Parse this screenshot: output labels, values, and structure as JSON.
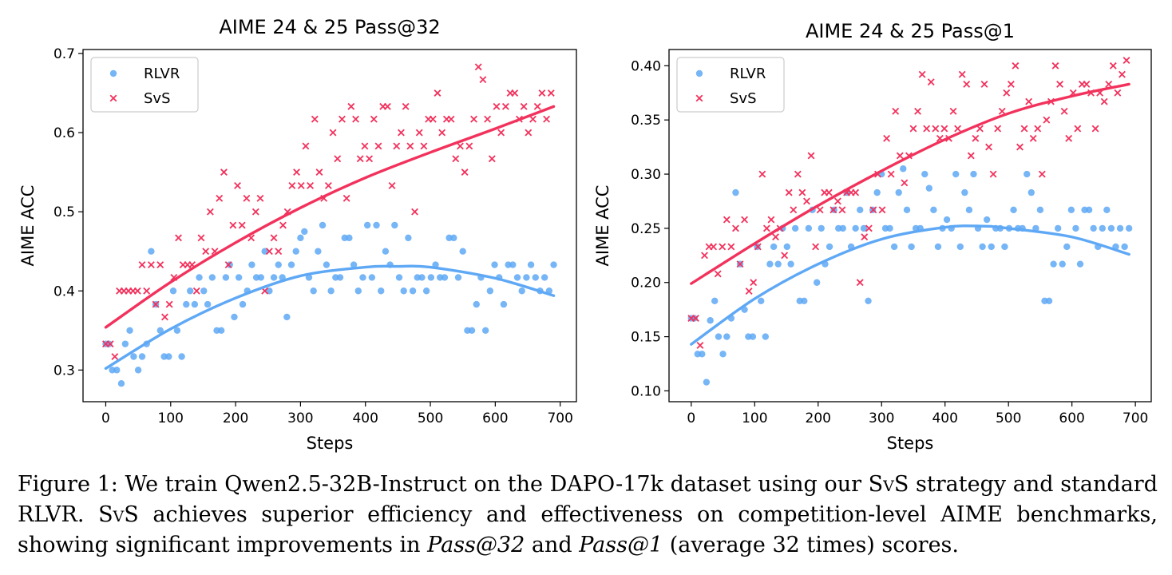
{
  "colors": {
    "rlvr": "#5ea8f5",
    "svs": "#f2325c"
  },
  "chart_data": [
    {
      "type": "scatter",
      "title": "AIME 24 & 25 Pass@32",
      "xlabel": "Steps",
      "ylabel": "AIME ACC",
      "xlim": [
        -35,
        725
      ],
      "ylim": [
        0.26,
        0.705
      ],
      "xticks": [
        0,
        100,
        200,
        300,
        400,
        500,
        600,
        700
      ],
      "yticks": [
        0.3,
        0.4,
        0.5,
        0.6,
        0.7
      ],
      "tick_labels_x": [
        "0",
        "100",
        "200",
        "300",
        "400",
        "500",
        "600",
        "700"
      ],
      "tick_labels_y": [
        "0.3",
        "0.4",
        "0.5",
        "0.6",
        "0.7"
      ],
      "legend": "top-left",
      "series": [
        {
          "name": "RLVR",
          "marker": "o",
          "x": [
            0,
            5,
            10,
            17,
            24,
            30,
            37,
            43,
            50,
            56,
            63,
            70,
            77,
            84,
            90,
            97,
            104,
            110,
            117,
            124,
            130,
            137,
            144,
            151,
            157,
            164,
            171,
            178,
            185,
            191,
            198,
            205,
            211,
            218,
            225,
            232,
            239,
            245,
            252,
            259,
            266,
            272,
            279,
            286,
            293,
            300,
            306,
            313,
            320,
            327,
            334,
            340,
            347,
            354,
            361,
            368,
            375,
            382,
            389,
            396,
            403,
            410,
            417,
            424,
            431,
            438,
            445,
            452,
            459,
            466,
            473,
            480,
            487,
            494,
            501,
            508,
            515,
            522,
            529,
            536,
            543,
            550,
            557,
            564,
            571,
            578,
            585,
            592,
            599,
            606,
            613,
            620,
            627,
            634,
            641,
            648,
            655,
            662,
            669,
            676,
            683,
            690
          ],
          "y": [
            0.333,
            0.333,
            0.3,
            0.3,
            0.283,
            0.333,
            0.35,
            0.317,
            0.3,
            0.317,
            0.333,
            0.45,
            0.383,
            0.35,
            0.317,
            0.317,
            0.4,
            0.35,
            0.317,
            0.383,
            0.4,
            0.383,
            0.417,
            0.4,
            0.383,
            0.417,
            0.35,
            0.35,
            0.417,
            0.433,
            0.367,
            0.417,
            0.383,
            0.4,
            0.433,
            0.417,
            0.417,
            0.45,
            0.4,
            0.417,
            0.433,
            0.417,
            0.367,
            0.433,
            0.45,
            0.467,
            0.475,
            0.417,
            0.4,
            0.45,
            0.483,
            0.433,
            0.4,
            0.417,
            0.417,
            0.467,
            0.467,
            0.433,
            0.4,
            0.417,
            0.483,
            0.417,
            0.483,
            0.4,
            0.45,
            0.433,
            0.483,
            0.417,
            0.4,
            0.467,
            0.4,
            0.417,
            0.417,
            0.4,
            0.417,
            0.433,
            0.417,
            0.417,
            0.467,
            0.467,
            0.417,
            0.45,
            0.35,
            0.35,
            0.383,
            0.417,
            0.35,
            0.4,
            0.433,
            0.417,
            0.383,
            0.433,
            0.433,
            0.417,
            0.4,
            0.417,
            0.433,
            0.417,
            0.4,
            0.417,
            0.4,
            0.433
          ]
        },
        {
          "name": "SvS",
          "marker": "x",
          "x": [
            0,
            7,
            14,
            21,
            28,
            35,
            42,
            49,
            56,
            63,
            70,
            77,
            84,
            91,
            98,
            105,
            112,
            119,
            126,
            133,
            140,
            147,
            154,
            161,
            168,
            175,
            182,
            189,
            196,
            203,
            210,
            217,
            224,
            231,
            238,
            245,
            252,
            259,
            266,
            273,
            280,
            287,
            294,
            301,
            308,
            315,
            322,
            329,
            336,
            343,
            350,
            357,
            364,
            371,
            378,
            385,
            392,
            399,
            406,
            413,
            420,
            427,
            434,
            441,
            448,
            455,
            462,
            469,
            476,
            483,
            490,
            497,
            504,
            511,
            518,
            525,
            532,
            539,
            546,
            553,
            560,
            567,
            574,
            581,
            588,
            595,
            602,
            609,
            616,
            623,
            630,
            637,
            644,
            651,
            658,
            665,
            672,
            679,
            686
          ],
          "y": [
            0.333,
            0.333,
            0.317,
            0.4,
            0.4,
            0.4,
            0.4,
            0.4,
            0.433,
            0.4,
            0.433,
            0.383,
            0.433,
            0.367,
            0.383,
            0.417,
            0.467,
            0.433,
            0.433,
            0.433,
            0.4,
            0.467,
            0.45,
            0.5,
            0.45,
            0.517,
            0.55,
            0.433,
            0.483,
            0.533,
            0.483,
            0.517,
            0.467,
            0.5,
            0.517,
            0.4,
            0.45,
            0.467,
            0.45,
            0.483,
            0.5,
            0.533,
            0.55,
            0.533,
            0.583,
            0.533,
            0.617,
            0.55,
            0.517,
            0.533,
            0.6,
            0.567,
            0.617,
            0.517,
            0.633,
            0.617,
            0.567,
            0.583,
            0.567,
            0.617,
            0.583,
            0.633,
            0.633,
            0.533,
            0.583,
            0.6,
            0.633,
            0.583,
            0.5,
            0.6,
            0.583,
            0.617,
            0.617,
            0.65,
            0.6,
            0.617,
            0.617,
            0.567,
            0.583,
            0.55,
            0.583,
            0.617,
            0.683,
            0.667,
            0.617,
            0.567,
            0.633,
            0.6,
            0.633,
            0.65,
            0.65,
            0.617,
            0.633,
            0.6,
            0.617,
            0.633,
            0.65,
            0.617,
            0.65
          ],
          "y_overrides_note": "values read off the plot"
        }
      ],
      "trend_lines": [
        {
          "name": "RLVR",
          "x": [
            0,
            100,
            200,
            300,
            400,
            450,
            500,
            600,
            690
          ],
          "y": [
            0.302,
            0.352,
            0.391,
            0.419,
            0.43,
            0.431,
            0.43,
            0.416,
            0.394
          ]
        },
        {
          "name": "SvS",
          "x": [
            0,
            100,
            200,
            300,
            400,
            500,
            600,
            690
          ],
          "y": [
            0.354,
            0.411,
            0.461,
            0.505,
            0.543,
            0.575,
            0.605,
            0.633
          ]
        }
      ]
    },
    {
      "type": "scatter",
      "title": "AIME 24 & 25 Pass@1",
      "xlabel": "Steps",
      "ylabel": "AIME ACC",
      "xlim": [
        -35,
        725
      ],
      "ylim": [
        0.09,
        0.415
      ],
      "xticks": [
        0,
        100,
        200,
        300,
        400,
        500,
        600,
        700
      ],
      "yticks": [
        0.1,
        0.15,
        0.2,
        0.25,
        0.3,
        0.35,
        0.4
      ],
      "tick_labels_x": [
        "0",
        "100",
        "200",
        "300",
        "400",
        "500",
        "600",
        "700"
      ],
      "tick_labels_y": [
        "0.10",
        "0.15",
        "0.20",
        "0.25",
        "0.30",
        "0.35",
        "0.40"
      ],
      "legend": "top-left",
      "series": [
        {
          "name": "RLVR",
          "marker": "o",
          "x": [
            0,
            5,
            10,
            17,
            24,
            30,
            37,
            43,
            50,
            56,
            63,
            70,
            77,
            84,
            90,
            97,
            104,
            110,
            117,
            124,
            130,
            137,
            144,
            151,
            157,
            164,
            171,
            178,
            185,
            191,
            198,
            205,
            211,
            218,
            225,
            232,
            239,
            245,
            252,
            259,
            266,
            272,
            279,
            286,
            293,
            300,
            306,
            313,
            320,
            327,
            334,
            340,
            347,
            354,
            361,
            368,
            375,
            382,
            389,
            396,
            403,
            410,
            417,
            424,
            431,
            438,
            445,
            452,
            459,
            466,
            473,
            480,
            487,
            494,
            501,
            508,
            515,
            522,
            529,
            536,
            543,
            550,
            557,
            564,
            571,
            578,
            585,
            592,
            599,
            606,
            613,
            620,
            627,
            634,
            641,
            648,
            655,
            662,
            669,
            676,
            683,
            690
          ],
          "y": [
            0.167,
            0.167,
            0.134,
            0.134,
            0.108,
            0.165,
            0.183,
            0.15,
            0.134,
            0.15,
            0.167,
            0.283,
            0.217,
            0.175,
            0.15,
            0.15,
            0.233,
            0.183,
            0.15,
            0.217,
            0.233,
            0.217,
            0.25,
            0.233,
            0.217,
            0.25,
            0.183,
            0.183,
            0.25,
            0.267,
            0.2,
            0.25,
            0.217,
            0.233,
            0.267,
            0.25,
            0.25,
            0.283,
            0.233,
            0.25,
            0.267,
            0.25,
            0.183,
            0.267,
            0.283,
            0.3,
            0.25,
            0.25,
            0.233,
            0.283,
            0.305,
            0.267,
            0.233,
            0.25,
            0.25,
            0.3,
            0.287,
            0.267,
            0.233,
            0.25,
            0.258,
            0.25,
            0.3,
            0.233,
            0.283,
            0.267,
            0.3,
            0.25,
            0.233,
            0.258,
            0.233,
            0.25,
            0.25,
            0.233,
            0.25,
            0.267,
            0.25,
            0.25,
            0.3,
            0.283,
            0.25,
            0.267,
            0.183,
            0.183,
            0.217,
            0.25,
            0.217,
            0.233,
            0.267,
            0.25,
            0.217,
            0.267,
            0.267,
            0.25,
            0.233,
            0.25,
            0.267,
            0.25,
            0.233,
            0.25,
            0.233,
            0.25
          ]
        },
        {
          "name": "SvS",
          "marker": "x",
          "x": [
            0,
            7,
            14,
            21,
            28,
            35,
            42,
            49,
            56,
            63,
            70,
            77,
            84,
            91,
            98,
            105,
            112,
            119,
            126,
            133,
            140,
            147,
            154,
            161,
            168,
            175,
            182,
            189,
            196,
            203,
            210,
            217,
            224,
            231,
            238,
            245,
            252,
            259,
            266,
            273,
            280,
            287,
            294,
            301,
            308,
            315,
            322,
            329,
            336,
            343,
            350,
            357,
            364,
            371,
            378,
            385,
            392,
            399,
            406,
            413,
            420,
            427,
            434,
            441,
            448,
            455,
            462,
            469,
            476,
            483,
            490,
            497,
            504,
            511,
            518,
            525,
            532,
            539,
            546,
            553,
            560,
            567,
            574,
            581,
            588,
            595,
            602,
            609,
            616,
            623,
            630,
            637,
            644,
            651,
            658,
            665,
            672,
            679,
            686
          ],
          "y": [
            0.167,
            0.167,
            0.142,
            0.225,
            0.233,
            0.233,
            0.208,
            0.233,
            0.258,
            0.233,
            0.25,
            0.217,
            0.258,
            0.192,
            0.2,
            0.233,
            0.3,
            0.25,
            0.258,
            0.242,
            0.25,
            0.225,
            0.283,
            0.267,
            0.3,
            0.283,
            0.275,
            0.317,
            0.233,
            0.267,
            0.283,
            0.283,
            0.267,
            0.275,
            0.267,
            0.283,
            0.283,
            0.283,
            0.2,
            0.242,
            0.25,
            0.267,
            0.3,
            0.267,
            0.333,
            0.3,
            0.358,
            0.317,
            0.292,
            0.317,
            0.342,
            0.358,
            0.392,
            0.342,
            0.385,
            0.342,
            0.333,
            0.342,
            0.333,
            0.358,
            0.342,
            0.392,
            0.383,
            0.317,
            0.333,
            0.342,
            0.383,
            0.325,
            0.3,
            0.342,
            0.358,
            0.375,
            0.383,
            0.4,
            0.325,
            0.342,
            0.367,
            0.333,
            0.342,
            0.3,
            0.35,
            0.367,
            0.4,
            0.383,
            0.358,
            0.333,
            0.375,
            0.342,
            0.383,
            0.383,
            0.375,
            0.342,
            0.375,
            0.367,
            0.383,
            0.4,
            0.375,
            0.392,
            0.405
          ]
        }
      ],
      "trend_lines": [
        {
          "name": "RLVR",
          "x": [
            0,
            100,
            200,
            300,
            400,
            460,
            500,
            600,
            690
          ],
          "y": [
            0.143,
            0.185,
            0.217,
            0.24,
            0.251,
            0.252,
            0.25,
            0.242,
            0.226
          ]
        },
        {
          "name": "SvS",
          "x": [
            0,
            100,
            200,
            300,
            400,
            500,
            600,
            690
          ],
          "y": [
            0.199,
            0.236,
            0.271,
            0.303,
            0.332,
            0.356,
            0.372,
            0.383
          ]
        }
      ]
    }
  ],
  "caption": {
    "lead": "Figure 1: We train Qwen2.5-32B-Instruct on the DAPO-17k dataset using our ",
    "svs1": "SvS",
    "mid1": " strategy and standard RLVR. ",
    "svs2": "SvS",
    "mid2": " achieves superior efficiency and effectiveness on competition-level AIME benchmarks, showing significant improvements in ",
    "pass32": "Pass@32",
    "and": " and ",
    "pass1": "Pass@1",
    "tail": " (average 32 times) scores."
  }
}
